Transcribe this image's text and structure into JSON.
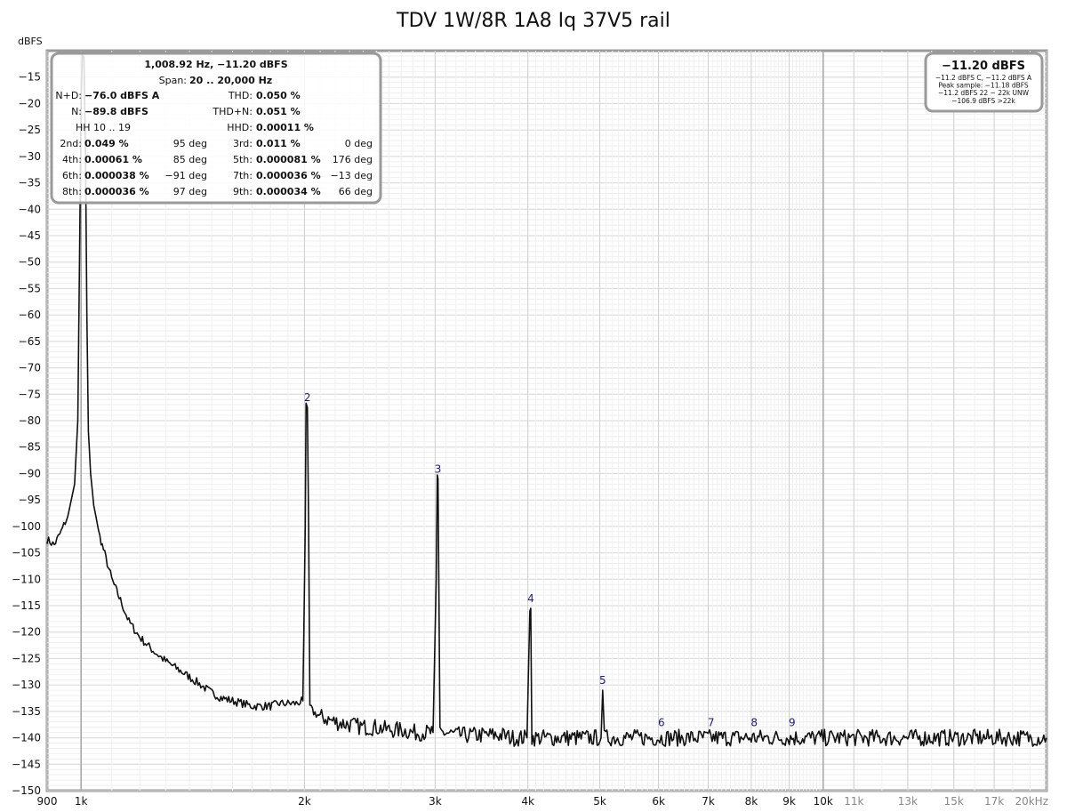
{
  "chart_data": {
    "type": "line",
    "title": "TDV 1W/8R 1A8 Iq 37V5 rail",
    "ylabel": "dBFS",
    "xlabel": "",
    "xscale": "log",
    "xlim": [
      900,
      20000
    ],
    "ylim": [
      -150,
      -10
    ],
    "grid": true,
    "y_ticks": [
      -15,
      -20,
      -25,
      -30,
      -35,
      -40,
      -45,
      -50,
      -55,
      -60,
      -65,
      -70,
      -75,
      -80,
      -85,
      -90,
      -95,
      -100,
      -105,
      -110,
      -115,
      -120,
      -125,
      -130,
      -135,
      -140,
      -145,
      -150
    ],
    "x_ticks": [
      {
        "value": 900,
        "label": "900",
        "major": true
      },
      {
        "value": 1000,
        "label": "1k",
        "major": true
      },
      {
        "value": 2000,
        "label": "2k",
        "major": true
      },
      {
        "value": 3000,
        "label": "3k",
        "major": true
      },
      {
        "value": 4000,
        "label": "4k",
        "major": true
      },
      {
        "value": 5000,
        "label": "5k",
        "major": true
      },
      {
        "value": 6000,
        "label": "6k",
        "major": true
      },
      {
        "value": 7000,
        "label": "7k",
        "major": true
      },
      {
        "value": 8000,
        "label": "8k",
        "major": true
      },
      {
        "value": 9000,
        "label": "9k",
        "major": true
      },
      {
        "value": 10000,
        "label": "10k",
        "major": true
      },
      {
        "value": 11000,
        "label": "11k",
        "major": false
      },
      {
        "value": 13000,
        "label": "13k",
        "major": false
      },
      {
        "value": 15000,
        "label": "15k",
        "major": false
      },
      {
        "value": 17000,
        "label": "17k",
        "major": false
      },
      {
        "value": 20000,
        "label": "20kHz",
        "major": false
      }
    ],
    "series": [
      {
        "x": [
          900,
          920,
          940,
          960,
          980,
          990,
          995,
          1000,
          1004,
          1009,
          1014,
          1018,
          1023,
          1030,
          1040,
          1060,
          1080,
          1100,
          1130,
          1160,
          1200,
          1250,
          1300,
          1350,
          1400,
          1450,
          1500,
          1550,
          1600,
          1650,
          1700,
          1750,
          1800,
          1850,
          1900,
          1950,
          1990,
          2005,
          2010,
          2018,
          2026,
          2034,
          2050,
          2100,
          2200,
          2300,
          2400,
          2500,
          2600,
          2700,
          2800,
          2900,
          2980,
          3010,
          3020,
          3027,
          3034,
          3045,
          3100,
          3200,
          3300,
          3400,
          3500,
          3600,
          3700,
          3800,
          3900,
          3990,
          4025,
          4036,
          4050,
          4100,
          4300,
          4500,
          4700,
          4900,
          5020,
          5045,
          5070,
          5200,
          5500,
          6000,
          6500,
          7000,
          7500,
          8000,
          8500,
          9000,
          9500,
          10000,
          11000,
          12000,
          13000,
          14000,
          15000,
          16000,
          17000,
          18000,
          19000,
          20000
        ],
        "y": [
          -102.5,
          -103.5,
          -101,
          -98,
          -92,
          -80,
          -50,
          -20,
          -11.2,
          -11.2,
          -30,
          -60,
          -82,
          -90,
          -96,
          -102,
          -106,
          -110,
          -114,
          -118,
          -121,
          -123.5,
          -125.5,
          -127,
          -128.5,
          -130,
          -131.5,
          -132.5,
          -133,
          -133.5,
          -134,
          -134,
          -134,
          -133.5,
          -133.5,
          -133.5,
          -133,
          -100,
          -77.5,
          -77.5,
          -100,
          -134,
          -135,
          -136,
          -137,
          -137.5,
          -138,
          -138,
          -138.5,
          -138.5,
          -139,
          -139,
          -139,
          -110,
          -91,
          -91,
          -110,
          -139,
          -139,
          -139.5,
          -139.5,
          -139.5,
          -139.5,
          -139.5,
          -139.5,
          -140,
          -140,
          -140,
          -115.5,
          -115.5,
          -140,
          -140,
          -140,
          -140,
          -140,
          -140,
          -140,
          -131,
          -140,
          -140,
          -140,
          -140,
          -140,
          -140,
          -140,
          -140,
          -140,
          -140,
          -140,
          -140,
          -140,
          -140,
          -140,
          -140,
          -140,
          -140,
          -140,
          -140,
          -140,
          -140
        ]
      }
    ],
    "harmonic_labels": [
      {
        "n": "2",
        "x": 2018,
        "y": -77.5
      },
      {
        "n": "3",
        "x": 3027,
        "y": -91
      },
      {
        "n": "4",
        "x": 4036,
        "y": -115.5
      },
      {
        "n": "5",
        "x": 5045,
        "y": -131
      },
      {
        "n": "6",
        "x": 6054,
        "y": -139
      },
      {
        "n": "7",
        "x": 7063,
        "y": -139
      },
      {
        "n": "8",
        "x": 8072,
        "y": -139
      },
      {
        "n": "9",
        "x": 9081,
        "y": -139
      }
    ],
    "info_box": {
      "header": "1,008.92 Hz, −11.20 dBFS",
      "span_label": "Span:",
      "span_value": "20 .. 20,000 Hz",
      "nd_label": "N+D:",
      "nd_value": "−76.0 dBFS A",
      "thd_label": "THD:",
      "thd_value": "0.050 %",
      "n_label": "N:",
      "n_value": "−89.8 dBFS",
      "thdn_label": "THD+N:",
      "thdn_value": "0.051 %",
      "hh_label": "HH 10 .. 19",
      "hhd_label": "HHD:",
      "hhd_value": "0.00011 %",
      "harmonics": [
        {
          "label": "2nd:",
          "value": "0.049 %",
          "phase": "95 deg",
          "label2": "3rd:",
          "value2": "0.011 %",
          "phase2": "0 deg"
        },
        {
          "label": "4th:",
          "value": "0.00061 %",
          "phase": "85 deg",
          "label2": "5th:",
          "value2": "0.000081 %",
          "phase2": "176 deg"
        },
        {
          "label": "6th:",
          "value": "0.000038 %",
          "phase": "−91 deg",
          "label2": "7th:",
          "value2": "0.000036 %",
          "phase2": "−13 deg"
        },
        {
          "label": "8th:",
          "value": "0.000036 %",
          "phase": "97 deg",
          "label2": "9th:",
          "value2": "0.000034 %",
          "phase2": "66 deg"
        }
      ]
    },
    "level_box": {
      "main": "−11.20 dBFS",
      "lines": [
        "−11.2 dBFS C, −11.2 dBFS A",
        "Peak sample: −11.18 dBFS",
        "−11.2 dBFS 22 − 22k UNW",
        "−106.9 dBFS >22k"
      ]
    }
  }
}
